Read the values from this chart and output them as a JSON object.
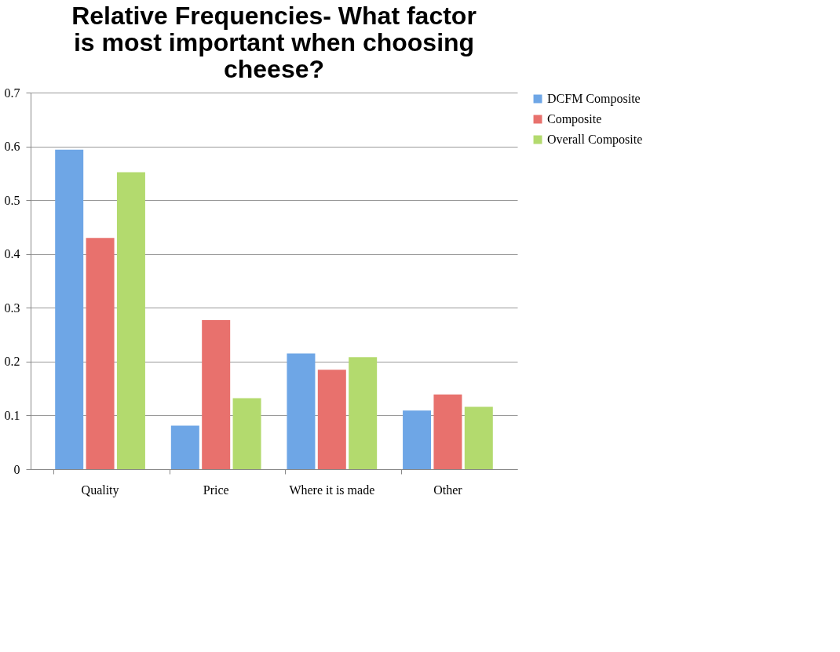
{
  "chart_data": {
    "type": "bar",
    "title": "Relative Frequencies- What factor is most important when choosing cheese?",
    "categories": [
      "Quality",
      "Price",
      "Where it is made",
      "Other"
    ],
    "series": [
      {
        "name": "DCFM Composite",
        "color": "#6ea6e6",
        "values": [
          0.594,
          0.081,
          0.215,
          0.109
        ]
      },
      {
        "name": "Composite",
        "color": "#e8716d",
        "values": [
          0.43,
          0.277,
          0.185,
          0.139
        ]
      },
      {
        "name": "Overall Composite",
        "color": "#b3da6e",
        "values": [
          0.552,
          0.132,
          0.208,
          0.116
        ]
      }
    ],
    "ylim": [
      0,
      0.7
    ],
    "yticks": [
      0,
      0.1,
      0.2,
      0.3,
      0.4,
      0.5,
      0.6,
      0.7
    ],
    "grid": "y",
    "legend": "right"
  }
}
